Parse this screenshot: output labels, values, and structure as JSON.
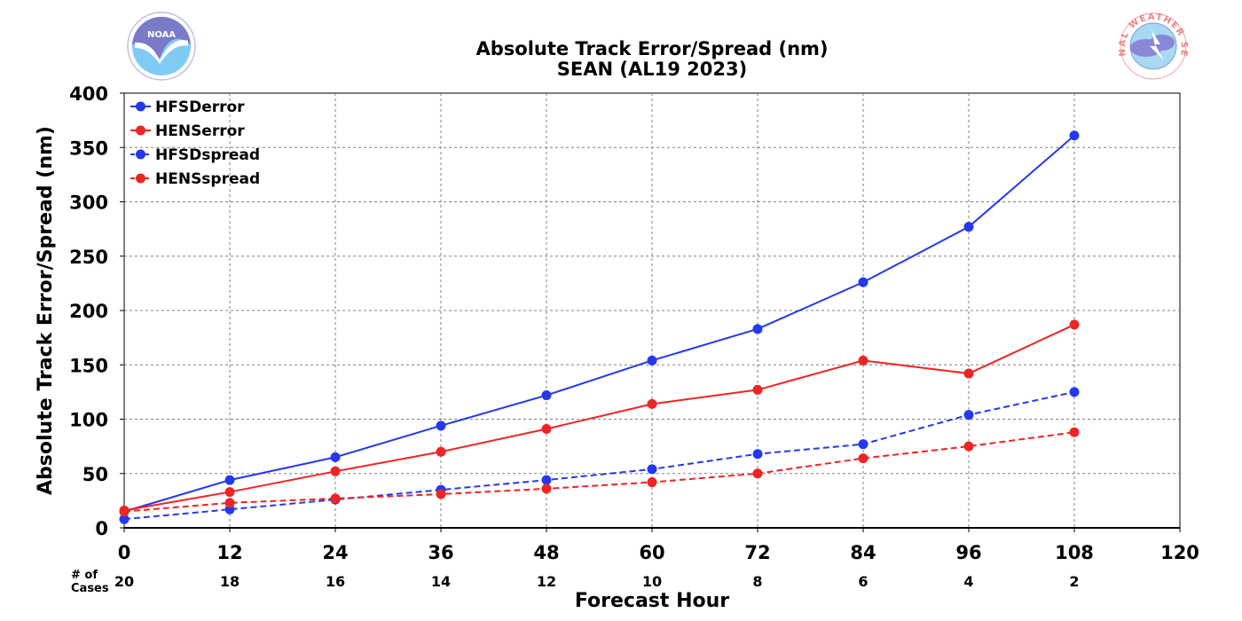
{
  "chart_data": {
    "type": "line",
    "title": "Absolute Track Error/Spread (nm)",
    "subtitle": "SEAN (AL19 2023)",
    "xlabel": "Forecast Hour",
    "ylabel": "Absolute Track Error/Spread (nm)",
    "xlim": [
      0,
      120
    ],
    "ylim": [
      0,
      400
    ],
    "xticks": [
      0,
      12,
      24,
      36,
      48,
      60,
      72,
      84,
      96,
      108,
      120
    ],
    "yticks": [
      0,
      50,
      100,
      150,
      200,
      250,
      300,
      350,
      400
    ],
    "grid": true,
    "legend_position": "top-left",
    "cases_label": "# of\nCases",
    "cases": [
      {
        "x": 0,
        "n": 20
      },
      {
        "x": 12,
        "n": 18
      },
      {
        "x": 24,
        "n": 16
      },
      {
        "x": 36,
        "n": 14
      },
      {
        "x": 48,
        "n": 12
      },
      {
        "x": 60,
        "n": 10
      },
      {
        "x": 72,
        "n": 8
      },
      {
        "x": 84,
        "n": 6
      },
      {
        "x": 96,
        "n": 4
      },
      {
        "x": 108,
        "n": 2
      }
    ],
    "x": [
      0,
      12,
      24,
      36,
      48,
      60,
      72,
      84,
      96,
      108
    ],
    "series": [
      {
        "name": "HFSDerror",
        "color": "#2438f0",
        "style": "solid",
        "values": [
          15,
          44,
          65,
          94,
          122,
          154,
          183,
          226,
          277,
          361
        ]
      },
      {
        "name": "HENSerror",
        "color": "#f02424",
        "style": "solid",
        "values": [
          16,
          33,
          52,
          70,
          91,
          114,
          127,
          154,
          142,
          187
        ]
      },
      {
        "name": "HFSDspread",
        "color": "#2438f0",
        "style": "dashed",
        "values": [
          8,
          17,
          26,
          35,
          44,
          54,
          68,
          77,
          104,
          125
        ]
      },
      {
        "name": "HENSspread",
        "color": "#f02424",
        "style": "dashed",
        "values": [
          15,
          23,
          27,
          31,
          36,
          42,
          50,
          64,
          75,
          88
        ]
      }
    ]
  },
  "logos": {
    "noaa_text": "NOAA",
    "nws_text": "NATIONAL WEATHER SERVICE"
  }
}
